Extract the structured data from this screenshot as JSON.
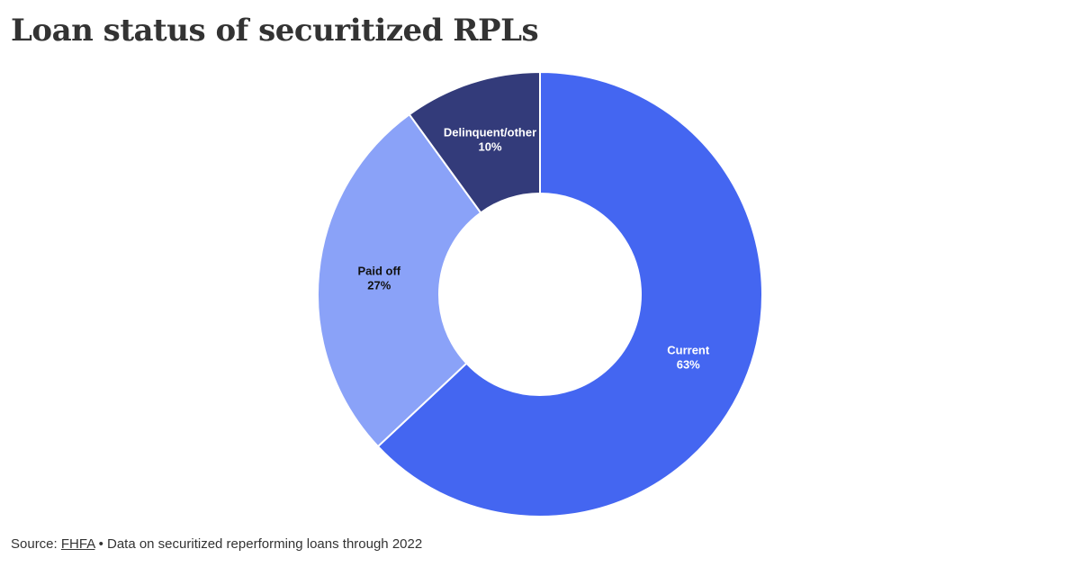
{
  "chart_data": {
    "type": "donut",
    "title": "Loan status of securitized RPLs",
    "categories": [
      "Current",
      "Paid off",
      "Delinquent/other"
    ],
    "values": [
      63,
      27,
      10
    ],
    "value_labels": [
      "63%",
      "27%",
      "10%"
    ],
    "colors": [
      "#4466f1",
      "#8aa2f8",
      "#333b7a"
    ]
  },
  "footer": {
    "source_label": "Source:",
    "source_link": "FHFA",
    "note": "• Data on securitized reperforming loans through 2022"
  }
}
